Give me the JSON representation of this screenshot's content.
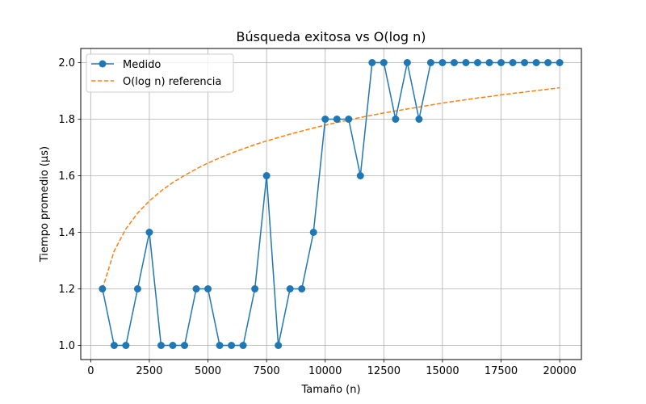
{
  "chart_data": {
    "type": "line",
    "title": "Búsqueda exitosa vs O(log n)",
    "xlabel": "Tamaño (n)",
    "ylabel": "Tiempo promedio (µs)",
    "xlim": [
      -425,
      20925
    ],
    "ylim": [
      0.95,
      2.05
    ],
    "xticks": [
      0,
      2500,
      5000,
      7500,
      10000,
      12500,
      15000,
      17500,
      20000
    ],
    "yticks": [
      1.0,
      1.2,
      1.4,
      1.6,
      1.8,
      2.0
    ],
    "xtick_labels": [
      "0",
      "2500",
      "5000",
      "7500",
      "10000",
      "12500",
      "15000",
      "17500",
      "20000"
    ],
    "ytick_labels": [
      "1.0",
      "1.2",
      "1.4",
      "1.6",
      "1.8",
      "2.0"
    ],
    "grid": true,
    "legend_position": "top-left",
    "series": [
      {
        "name": "Medido",
        "color": "#1f77b4",
        "style": "solid-markers",
        "x": [
          500,
          1000,
          1500,
          2000,
          2500,
          3000,
          3500,
          4000,
          4500,
          5000,
          5500,
          6000,
          6500,
          7000,
          7500,
          8000,
          8500,
          9000,
          9500,
          10000,
          10500,
          11000,
          11500,
          12000,
          12500,
          13000,
          13500,
          14000,
          14500,
          15000,
          15500,
          16000,
          16500,
          17000,
          17500,
          18000,
          18500,
          19000,
          19500,
          20000
        ],
        "y": [
          1.2,
          1.0,
          1.0,
          1.2,
          1.4,
          1.0,
          1.0,
          1.0,
          1.2,
          1.2,
          1.0,
          1.0,
          1.0,
          1.2,
          1.6,
          1.0,
          1.2,
          1.2,
          1.4,
          1.8,
          1.8,
          1.8,
          1.6,
          2.0,
          2.0,
          1.8,
          2.0,
          1.8,
          2.0,
          2.0,
          2.0,
          2.0,
          2.0,
          2.0,
          2.0,
          2.0,
          2.0,
          2.0,
          2.0,
          2.0
        ]
      },
      {
        "name": "O(log n) referencia",
        "color": "#ff7f0e",
        "style": "dashed",
        "x": [
          500,
          1000,
          1500,
          2000,
          2500,
          3000,
          3500,
          4000,
          4500,
          5000,
          5500,
          6000,
          6500,
          7000,
          7500,
          8000,
          8500,
          9000,
          9500,
          10000,
          10500,
          11000,
          11500,
          12000,
          12500,
          13000,
          13500,
          14000,
          14500,
          15000,
          15500,
          16000,
          16500,
          17000,
          17500,
          18000,
          18500,
          19000,
          19500,
          20000
        ],
        "y": [
          1.2,
          1.334,
          1.412,
          1.468,
          1.511,
          1.546,
          1.576,
          1.601,
          1.624,
          1.645,
          1.663,
          1.68,
          1.695,
          1.71,
          1.723,
          1.735,
          1.747,
          1.758,
          1.769,
          1.779,
          1.788,
          1.797,
          1.806,
          1.814,
          1.822,
          1.829,
          1.836,
          1.843,
          1.85,
          1.857,
          1.863,
          1.869,
          1.875,
          1.88,
          1.886,
          1.891,
          1.896,
          1.901,
          1.906,
          1.911
        ]
      }
    ]
  }
}
